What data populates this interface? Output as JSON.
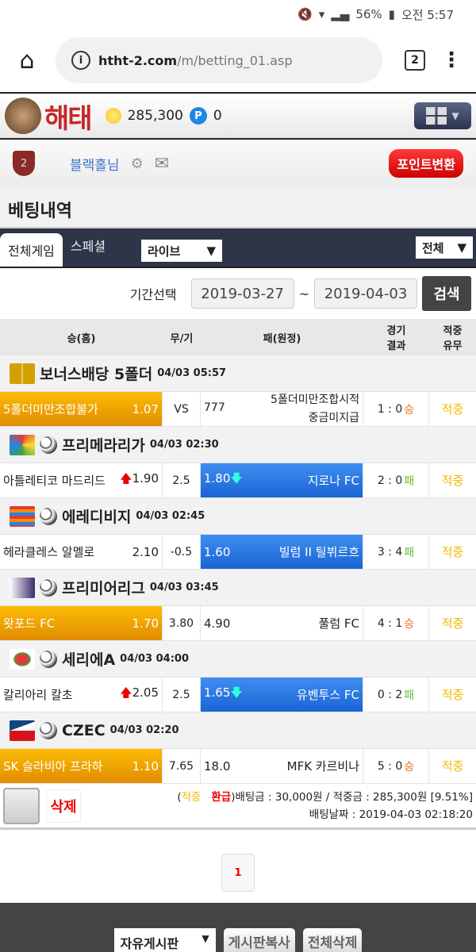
{
  "status": {
    "battery": "56%",
    "time": "오전 5:57"
  },
  "browser": {
    "url_domain": "htht-2.com",
    "url_path": "/m/betting_01.asp",
    "tab_count": "2"
  },
  "header": {
    "logo": "해태",
    "coins": "285,300",
    "points_icon": "P",
    "points": "0"
  },
  "user": {
    "level": "2",
    "name": "블랙홀",
    "suffix": "님",
    "point_convert": "포인트변환"
  },
  "page_title": "베팅내역",
  "tabs": {
    "all": "전체게임",
    "special": "스페셜",
    "type_select": "라이브",
    "filter_select": "전체"
  },
  "period": {
    "label": "기간선택",
    "from": "2019-03-27",
    "sep": "~",
    "to": "2019-04-03",
    "search": "검색"
  },
  "columns": {
    "home": "승(홈)",
    "draw": "무/기",
    "away": "패(원정)",
    "result1": "경기",
    "result2": "결과",
    "hit1": "적중",
    "hit2": "유무"
  },
  "groups": [
    {
      "icon": "bonus",
      "league": "보너스배당 5폴더",
      "time": "04/03 05:57",
      "home": "5폴더미만조합불가",
      "home_odds": "1.07",
      "home_style": "gold",
      "draw": "VS",
      "away_odds": "777",
      "away": "5폴더미만조합시적",
      "away2": "중금미지급",
      "away_style": "",
      "score": "1 : 0",
      "outcome": "승",
      "hit": "적중"
    },
    {
      "icon": "laliga",
      "league": "프리메라리가",
      "time": "04/03 02:30",
      "home": "아틀레티코 마드리드",
      "home_arrow": "up",
      "home_odds": "1.90",
      "home_style": "",
      "draw": "2.5",
      "away_odds": "1.80",
      "away_arrow": "down",
      "away": "지로나 FC",
      "away_style": "blue",
      "score": "2 : 0",
      "outcome": "패",
      "hit": "적중"
    },
    {
      "icon": "eredivisie",
      "league": "에레디비지",
      "time": "04/03 02:45",
      "home": "헤라클레스 알멜로",
      "home_odds": "2.10",
      "home_style": "",
      "draw": "-0.5",
      "away_odds": "1.60",
      "away": "빌럼 II 틸뷔르흐",
      "away_style": "blue",
      "score": "3 : 4",
      "outcome": "패",
      "hit": "적중"
    },
    {
      "icon": "premier-league",
      "league": "프리미어리그",
      "time": "04/03 03:45",
      "home": "왓포드 FC",
      "home_odds": "1.70",
      "home_style": "gold",
      "draw": "3.80",
      "away_odds": "4.90",
      "away": "풀럼 FC",
      "away_style": "",
      "score": "4 : 1",
      "outcome": "승",
      "hit": "적중"
    },
    {
      "icon": "serie-a",
      "league": "세리에A",
      "time": "04/03 04:00",
      "home": "칼리아리 칼초",
      "home_arrow": "up",
      "home_odds": "2.05",
      "home_style": "",
      "draw": "2.5",
      "away_odds": "1.65",
      "away_arrow": "down",
      "away": "유벤투스 FC",
      "away_style": "blue",
      "score": "0 : 2",
      "outcome": "패",
      "hit": "적중"
    },
    {
      "icon": "czech-flag",
      "league": "CZEC",
      "time": "04/03 02:20",
      "home": "SK 슬라비아 프라하",
      "home_odds": "1.10",
      "home_style": "gold",
      "draw": "7.65",
      "away_odds": "18.0",
      "away": "MFK 카르비나",
      "away_style": "",
      "score": "5 : 0",
      "outcome": "승",
      "hit": "적중"
    }
  ],
  "summary": {
    "delete": "삭제",
    "status_hit": "적중",
    "status_refund": "환급",
    "bet_label": "배팅금 : 30,000원 / 적중금 : 285,300원 [9.51%]",
    "date_label": "배팅날짜 : 2019-04-03 02:18:20"
  },
  "pagination": {
    "current": "1"
  },
  "bottom": {
    "board_select": "자유게시판",
    "copy": "게시판복사",
    "delete_all": "전체삭제"
  },
  "colors": {
    "gold": "#f5b800",
    "blue": "#2a78e4",
    "navy": "#2e3548",
    "win": "#f26b21",
    "lose": "#6bbf2a",
    "red": "#e00000"
  }
}
